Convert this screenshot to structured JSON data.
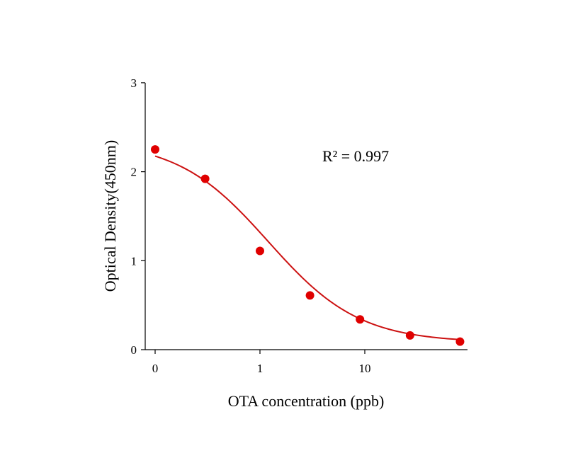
{
  "chart_data": {
    "type": "scatter",
    "xlabel": "OTA concentration (ppb)",
    "ylabel": "Optical Density(450nm)",
    "x_scale": "log",
    "x_ticks": [
      {
        "value": 0,
        "label": "0"
      },
      {
        "value": 1,
        "label": "1"
      },
      {
        "value": 10,
        "label": "10"
      }
    ],
    "y_ticks": [
      {
        "value": 0,
        "label": "0"
      },
      {
        "value": 1,
        "label": "1"
      },
      {
        "value": 2,
        "label": "2"
      },
      {
        "value": 3,
        "label": "3"
      }
    ],
    "ylim": [
      0,
      3
    ],
    "grid": false,
    "annotation": "R² = 0.997",
    "points": [
      {
        "x": 0.1,
        "y": 2.25
      },
      {
        "x": 0.3,
        "y": 1.92
      },
      {
        "x": 1,
        "y": 1.11
      },
      {
        "x": 3,
        "y": 0.61
      },
      {
        "x": 9,
        "y": 0.34
      },
      {
        "x": 27,
        "y": 0.16
      },
      {
        "x": 81,
        "y": 0.09
      }
    ],
    "fit_curve": {
      "type": "4PL",
      "top": 2.35,
      "bottom": 0.08,
      "ec50": 1.2,
      "hill": 1.0
    },
    "colors": {
      "points": "#e00000",
      "curve": "#cc1111",
      "axes": "#000000"
    }
  }
}
